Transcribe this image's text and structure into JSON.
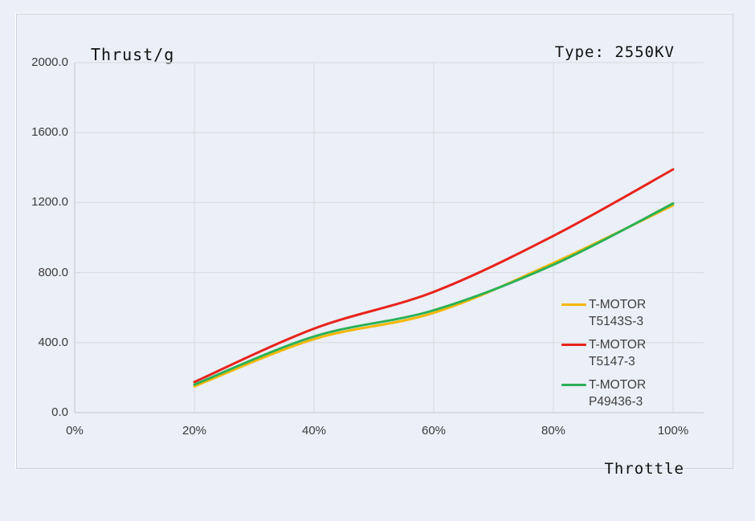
{
  "header": {
    "title": "Thrust/g",
    "type_label": "Type: 2550KV"
  },
  "colors": {
    "background": "#EBEFF7",
    "panel_border": "#CDD1D8",
    "gridline": "#D7DADE",
    "axis_line": "#C2C6CE",
    "tick_text": "#3B3B3B",
    "title_text": "#111111"
  },
  "chart_data": {
    "type": "line",
    "title": "Thrust/g",
    "xlabel": "Throttle",
    "ylabel": "Thrust/g",
    "grid": true,
    "legend_position": "middle-right",
    "xlim_percent": [
      0,
      105
    ],
    "ylim": [
      0,
      2000
    ],
    "x_ticks": [
      "0%",
      "20%",
      "40%",
      "60%",
      "80%",
      "100%"
    ],
    "y_ticks": [
      "2000.0",
      "1600.0",
      "1200.0",
      "800.0",
      "400.0",
      "0.0"
    ],
    "x_values_percent": [
      20,
      40,
      60,
      80,
      100
    ],
    "series": [
      {
        "name": "T-MOTOR T5143S-3",
        "label_lines": [
          "T-MOTOR",
          "T5143S-3"
        ],
        "color": "#F5B700",
        "values": [
          150,
          420,
          570,
          855,
          1185
        ]
      },
      {
        "name": "T-MOTOR T5147-3",
        "label_lines": [
          "T-MOTOR",
          "T5147-3"
        ],
        "color": "#E8231C",
        "values": [
          175,
          480,
          690,
          1010,
          1390
        ]
      },
      {
        "name": "T-MOTOR P49436-3",
        "label_lines": [
          "T-MOTOR",
          "P49436-3"
        ],
        "color": "#2BB157",
        "values": [
          160,
          435,
          585,
          845,
          1195
        ]
      }
    ],
    "draw_order": [
      0,
      2,
      1
    ]
  }
}
